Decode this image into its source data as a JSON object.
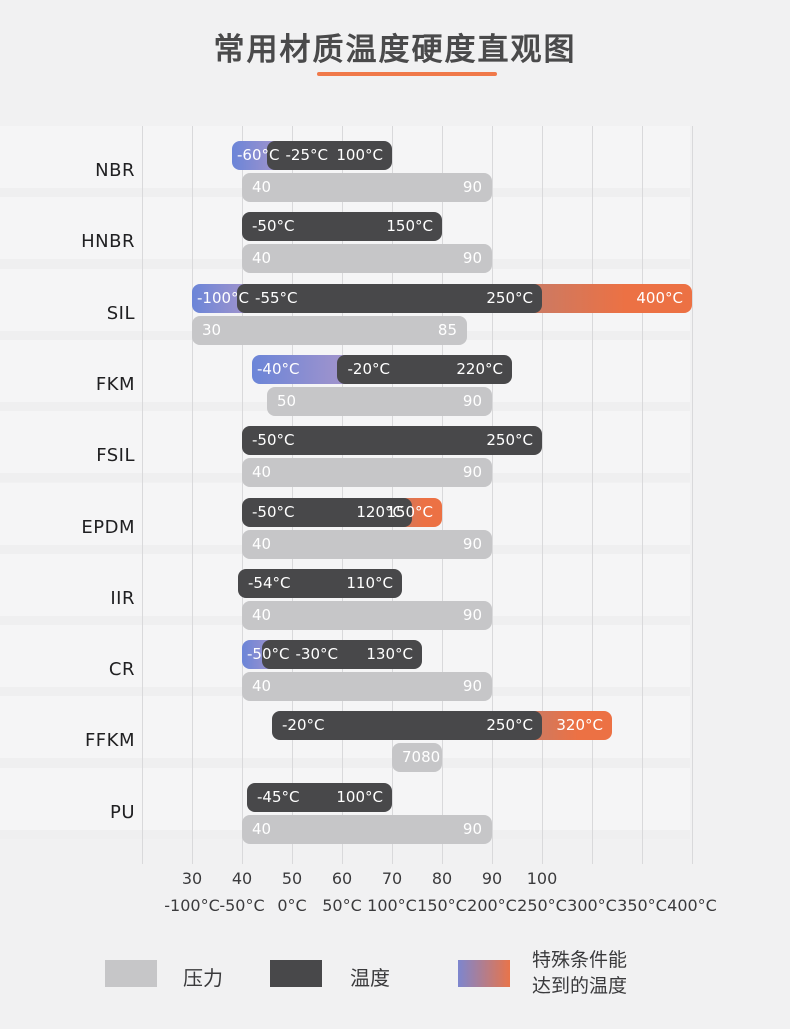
{
  "title": {
    "text": "常用材质温度硬度直观图"
  },
  "legend": {
    "pressure_label": "压力",
    "temperature_label": "温度",
    "special_label_line1": "特殊条件能",
    "special_label_line2": "达到的温度"
  },
  "colors": {
    "page_bg": "#f1f1f2",
    "row_band": "#f5f5f6",
    "gridline": "#d9d9db",
    "temperature_bar": "#48484a",
    "pressure_bar": "#c6c6c8",
    "special_cold_start": "#6b85d8",
    "special_cold_end": "#a695cb",
    "special_hot_start": "#c87b66",
    "special_hot_end": "#ec7144",
    "accent_underline": "#f0794a"
  },
  "chart_data": {
    "type": "bar",
    "orientation": "horizontal",
    "title": "常用材质温度硬度直观图",
    "series_legend": [
      "压力",
      "温度",
      "特殊条件能达到的温度"
    ],
    "temperature_axis": {
      "unit": "°C",
      "min": -100,
      "max": 400,
      "ticks": [
        -100,
        -50,
        0,
        50,
        100,
        150,
        200,
        250,
        300,
        350,
        400
      ],
      "tick_labels": [
        "-100°C",
        "-50°C",
        "0°C",
        "50°C",
        "100°C",
        "150°C",
        "200°C",
        "250°C",
        "300°C",
        "350°C",
        "400°C"
      ]
    },
    "hardness_axis": {
      "min": 30,
      "max": 100,
      "ticks": [
        30,
        40,
        50,
        60,
        70,
        80,
        90,
        100
      ],
      "tick_labels": [
        "30",
        "40",
        "50",
        "60",
        "70",
        "80",
        "90",
        "100"
      ]
    },
    "materials": [
      {
        "name": "NBR",
        "temperature": {
          "special_cold_min": -60,
          "special_cold_label": "-60°C",
          "main_min": -25,
          "main_min_label": "-25°C",
          "main_max": 100,
          "main_max_label": "100°C"
        },
        "pressure": {
          "min": 40,
          "min_label": "40",
          "max": 90,
          "max_label": "90"
        }
      },
      {
        "name": "HNBR",
        "temperature": {
          "main_min": -50,
          "main_min_label": "-50°C",
          "main_max": 150,
          "main_max_label": "150°C"
        },
        "pressure": {
          "min": 40,
          "min_label": "40",
          "max": 90,
          "max_label": "90"
        }
      },
      {
        "name": "SIL",
        "temperature": {
          "special_cold_min": -100,
          "special_cold_label": "-100°C",
          "main_min": -55,
          "main_min_label": "-55°C",
          "main_max": 250,
          "main_max_label": "250°C",
          "special_hot_max": 400,
          "special_hot_label": "400°C"
        },
        "pressure": {
          "min": 30,
          "min_label": "30",
          "max": 85,
          "max_label": "85"
        }
      },
      {
        "name": "FKM",
        "temperature": {
          "special_cold_min": -40,
          "special_cold_label": "-40°C",
          "main_min": -20,
          "main_min_label": "-20°C",
          "main_max": 220,
          "main_max_label": "220°C"
        },
        "pressure": {
          "min": 50,
          "min_label": "50",
          "max": 90,
          "max_label": "90"
        },
        "display": {
          "main_min": 45,
          "pressure_min": 45
        }
      },
      {
        "name": "FSIL",
        "temperature": {
          "main_min": -50,
          "main_min_label": "-50°C",
          "main_max": 250,
          "main_max_label": "250°C"
        },
        "pressure": {
          "min": 40,
          "min_label": "40",
          "max": 90,
          "max_label": "90"
        }
      },
      {
        "name": "EPDM",
        "temperature": {
          "main_min": -50,
          "main_min_label": "-50°C",
          "main_max": 120,
          "main_max_label": "120°C",
          "special_hot_max": 150,
          "special_hot_label": "150°C"
        },
        "pressure": {
          "min": 40,
          "min_label": "40",
          "max": 90,
          "max_label": "90"
        }
      },
      {
        "name": "IIR",
        "temperature": {
          "main_min": -54,
          "main_min_label": "-54°C",
          "main_max": 110,
          "main_max_label": "110°C"
        },
        "pressure": {
          "min": 40,
          "min_label": "40",
          "max": 90,
          "max_label": "90"
        }
      },
      {
        "name": "CR",
        "temperature": {
          "special_cold_min": -50,
          "special_cold_label": "-50°C",
          "main_min": -30,
          "main_min_label": "-30°C",
          "main_max": 130,
          "main_max_label": "130°C"
        },
        "pressure": {
          "min": 40,
          "min_label": "40",
          "max": 90,
          "max_label": "90"
        }
      },
      {
        "name": "FFKM",
        "temperature": {
          "main_min": -20,
          "main_min_label": "-20°C",
          "main_max": 250,
          "main_max_label": "250°C",
          "special_hot_max": 320,
          "special_hot_label": "320°C"
        },
        "pressure": {
          "min": 70,
          "min_label": "70",
          "max": 80,
          "max_label": "80"
        }
      },
      {
        "name": "PU",
        "temperature": {
          "main_min": -45,
          "main_min_label": "-45°C",
          "main_max": 100,
          "main_max_label": "100°C"
        },
        "pressure": {
          "min": 40,
          "min_label": "40",
          "max": 90,
          "max_label": "90"
        }
      }
    ]
  }
}
